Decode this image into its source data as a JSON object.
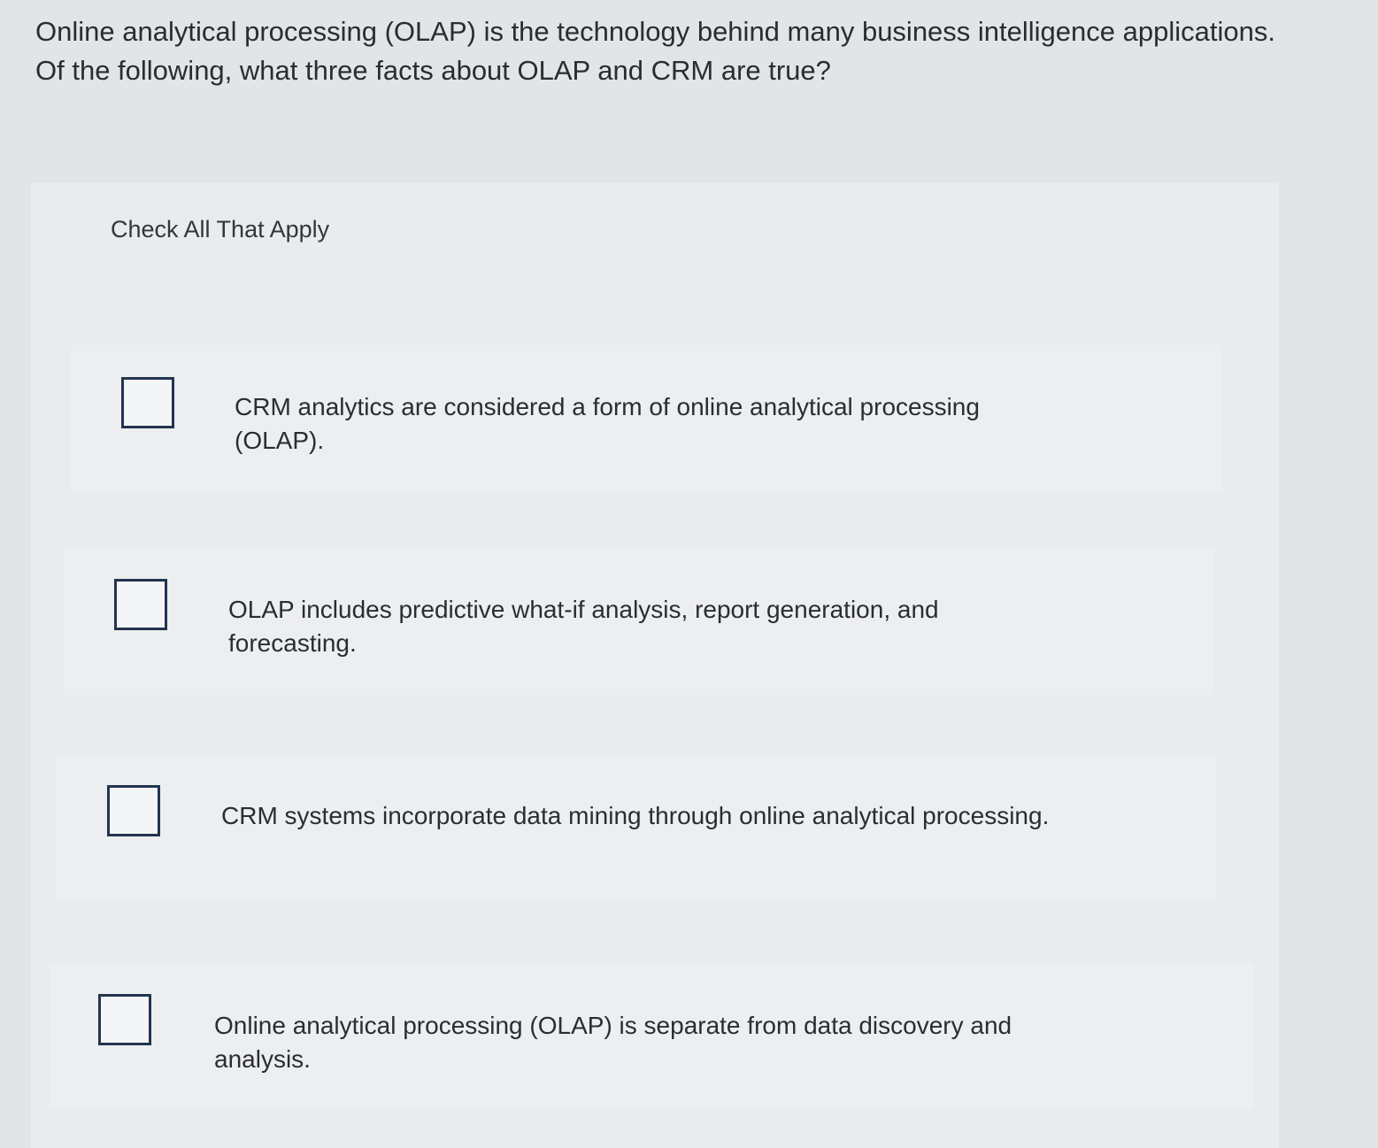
{
  "question": "Online analytical processing (OLAP) is the technology behind many business intelligence applications. Of the following, what three facts about OLAP and CRM are true?",
  "instruction": "Check All That Apply",
  "options": [
    {
      "label": "CRM analytics are considered a form of online analytical processing (OLAP).",
      "checked": false
    },
    {
      "label": "OLAP includes predictive what-if analysis, report generation, and forecasting.",
      "checked": false
    },
    {
      "label": "CRM systems incorporate data mining through online analytical processing.",
      "checked": false
    },
    {
      "label": "Online analytical processing (OLAP) is separate from data discovery and analysis.",
      "checked": false
    }
  ],
  "colors": {
    "checkbox_border": "#223550",
    "background": "#e2e4e6"
  }
}
